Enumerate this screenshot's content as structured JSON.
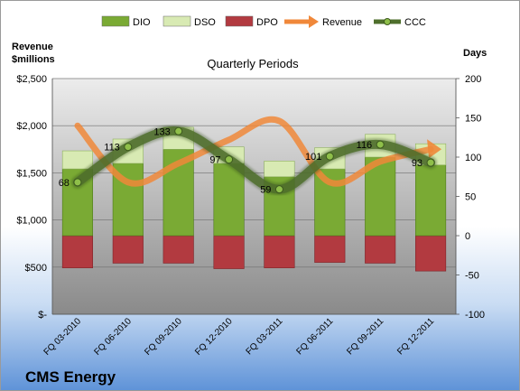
{
  "chart_data": {
    "type": "bar",
    "subtitle": "Quarterly Periods",
    "company": "CMS Energy",
    "left_axis_title": [
      "Revenue",
      "$millions"
    ],
    "right_axis_title": "Days",
    "left_axis": {
      "min": 0,
      "max": 2500,
      "step": 500,
      "tick_labels": [
        "$-",
        "$500",
        "$1,000",
        "$1,500",
        "$2,000",
        "$2,500"
      ]
    },
    "right_axis": {
      "min": -100,
      "max": 200,
      "step": 50,
      "tick_labels": [
        "-100",
        "-50",
        "0",
        "50",
        "100",
        "150",
        "200"
      ]
    },
    "categories": [
      "FQ 03-2010",
      "FQ 06-2010",
      "FQ 09-2010",
      "FQ 12-2010",
      "FQ 03-2011",
      "FQ 06-2011",
      "FQ 09-2011",
      "FQ 12-2011"
    ],
    "legend": {
      "position": "top",
      "entries": [
        {
          "key": "dio",
          "label": "DIO"
        },
        {
          "key": "dso",
          "label": "DSO"
        },
        {
          "key": "dpo",
          "label": "DPO"
        },
        {
          "key": "revenue",
          "label": "Revenue"
        },
        {
          "key": "ccc",
          "label": "CCC"
        }
      ]
    },
    "series": [
      {
        "name": "DIO",
        "axis": "right",
        "kind": "stacked-bar",
        "values": [
          85,
          92,
          110,
          92,
          75,
          85,
          100,
          90
        ]
      },
      {
        "name": "DSO",
        "axis": "right",
        "kind": "stacked-bar",
        "values": [
          23,
          31,
          28,
          21,
          20,
          27,
          29,
          27
        ]
      },
      {
        "name": "DPO",
        "axis": "right",
        "kind": "negative-bar",
        "values": [
          -41,
          -35,
          -35,
          -42,
          -41,
          -34,
          -35,
          -45
        ]
      },
      {
        "name": "Revenue",
        "axis": "left",
        "kind": "line",
        "values": [
          2000,
          1400,
          1600,
          1850,
          2050,
          1400,
          1620,
          1750
        ]
      },
      {
        "name": "CCC",
        "axis": "right",
        "kind": "line",
        "values": [
          68,
          113,
          133,
          97,
          59,
          101,
          116,
          93
        ],
        "data_labels": [
          "68",
          "113",
          "133",
          "97",
          "59",
          "101",
          "116",
          "93"
        ]
      }
    ],
    "colors": {
      "dio": "#7aaa34",
      "dso": "#d8eab3",
      "dpo": "#b23a40",
      "revenue": "#f0883a",
      "ccc": "#4f6f2c",
      "plot_top": "#ececec",
      "plot_bottom": "#8a8a8a"
    },
    "grid": true
  }
}
